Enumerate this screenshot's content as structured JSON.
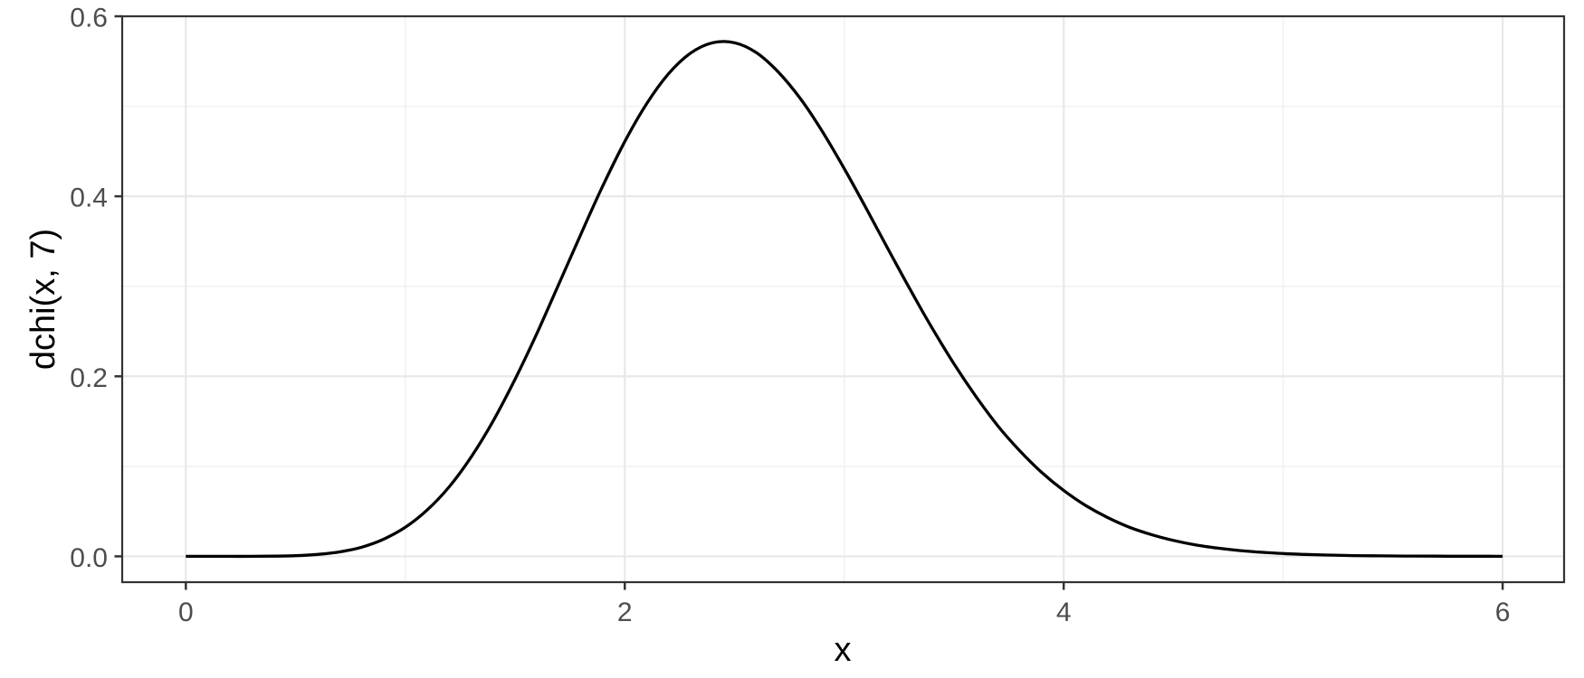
{
  "chart_data": {
    "type": "line",
    "title": "",
    "xlabel": "x",
    "ylabel": "dchi(x, 7)",
    "legend_position": "none",
    "grid": "major and minor, light gray on white panel with dark border (ggplot theme_bw style)",
    "xlim": [
      -0.29,
      6.28
    ],
    "ylim": [
      -0.0287,
      0.6
    ],
    "x_tick_values": [
      0,
      2,
      4,
      6
    ],
    "x_tick_labels": [
      "0",
      "2",
      "4",
      "6"
    ],
    "x_minor_ticks": [
      1,
      3,
      5
    ],
    "y_tick_values": [
      0,
      0.2,
      0.4,
      0.6
    ],
    "y_tick_labels": [
      "0.0",
      "0.2",
      "0.4",
      "0.6"
    ],
    "y_minor_ticks": [
      0.1,
      0.3,
      0.5
    ],
    "style": {
      "background": "#ffffff",
      "panel_border": "#333333",
      "grid_major": "#e8e8e8",
      "grid_minor": "#f1f1f1",
      "tick_color": "#333333",
      "tick_label_color": "#4d4d4d",
      "axis_title_color": "#000000",
      "line_color": "#000000"
    },
    "series": [
      {
        "name": "dchi(x, 7)",
        "x": [
          0,
          0.1,
          0.2,
          0.3,
          0.4,
          0.5,
          0.6,
          0.7,
          0.8,
          0.9,
          1.0,
          1.1,
          1.2,
          1.3,
          1.4,
          1.5,
          1.6,
          1.7,
          1.8,
          1.9,
          2.0,
          2.1,
          2.2,
          2.3,
          2.4,
          2.5,
          2.6,
          2.7,
          2.8,
          2.9,
          3.0,
          3.1,
          3.2,
          3.3,
          3.4,
          3.5,
          3.6,
          3.7,
          3.8,
          3.9,
          4.0,
          4.1,
          4.2,
          4.3,
          4.4,
          4.5,
          4.6,
          4.7,
          4.8,
          4.9,
          5.0,
          5.1,
          5.2,
          5.3,
          5.4,
          5.5,
          5.6,
          5.7,
          5.8,
          5.9,
          6.0
        ],
        "y": [
          0,
          0.0,
          0.0,
          0.0,
          0.0002,
          0.0007,
          0.0021,
          0.0049,
          0.0101,
          0.0189,
          0.0323,
          0.0515,
          0.0773,
          0.1103,
          0.1503,
          0.1967,
          0.2479,
          0.3027,
          0.358,
          0.4116,
          0.4607,
          0.503,
          0.5363,
          0.5591,
          0.5706,
          0.5706,
          0.5595,
          0.5379,
          0.5086,
          0.4721,
          0.4308,
          0.3866,
          0.3413,
          0.2966,
          0.2538,
          0.2139,
          0.1776,
          0.1449,
          0.1172,
          0.0932,
          0.0731,
          0.0565,
          0.0431,
          0.0323,
          0.0241,
          0.0177,
          0.0128,
          0.0092,
          0.0065,
          0.0045,
          0.0031,
          0.0021,
          0.0014,
          0.0009,
          0.0006,
          0.0004,
          0.0003,
          0.0002,
          0.0001,
          0.0001,
          0.0
        ]
      }
    ]
  }
}
